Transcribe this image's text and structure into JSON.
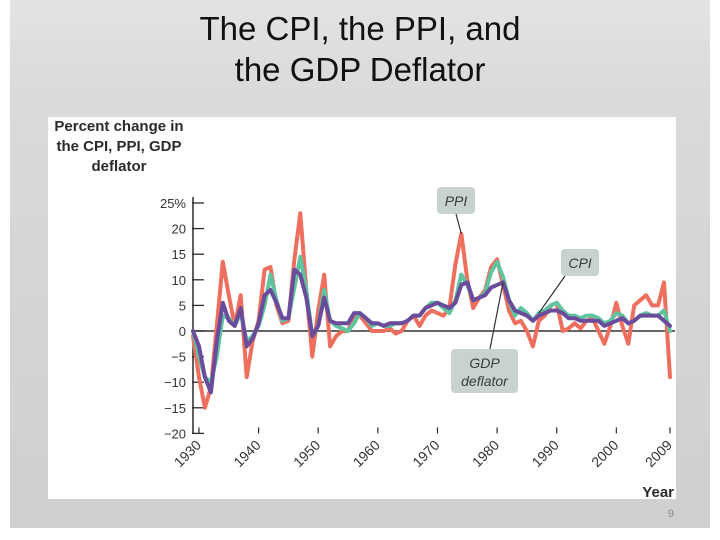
{
  "slide": {
    "title_line1": "The CPI, the PPI, and",
    "title_line2": "the GDP Deflator",
    "page_number": "9"
  },
  "chart_data": {
    "type": "line",
    "title": "",
    "ylabel_lines": [
      "Percent change in",
      "the CPI, PPI, GDP",
      "deflator"
    ],
    "xlabel": "Year",
    "ylim": [
      -20,
      25
    ],
    "xlim": [
      1929,
      2009
    ],
    "yticks": [
      25,
      20,
      15,
      10,
      5,
      0,
      -5,
      -10,
      -15,
      -20
    ],
    "ytick_labels": [
      "25%",
      "20",
      "15",
      "10",
      "5",
      "0",
      "−5",
      "−10",
      "−15",
      "−20"
    ],
    "xticks": [
      1930,
      1940,
      1950,
      1960,
      1970,
      1980,
      1990,
      2000,
      2009
    ],
    "xtick_labels": [
      "1930",
      "1940",
      "1950",
      "1960",
      "1970",
      "1980",
      "1990",
      "2000",
      "2009"
    ],
    "series": [
      {
        "name": "PPI",
        "color": "#ef6f5e",
        "points": [
          [
            1929,
            -1
          ],
          [
            1930,
            -9
          ],
          [
            1931,
            -15
          ],
          [
            1932,
            -11
          ],
          [
            1933,
            1
          ],
          [
            1934,
            13.5
          ],
          [
            1935,
            7
          ],
          [
            1936,
            1
          ],
          [
            1937,
            7
          ],
          [
            1938,
            -9
          ],
          [
            1939,
            -2
          ],
          [
            1940,
            2
          ],
          [
            1941,
            12
          ],
          [
            1942,
            12.5
          ],
          [
            1943,
            5
          ],
          [
            1944,
            1.5
          ],
          [
            1945,
            2
          ],
          [
            1946,
            14
          ],
          [
            1947,
            23
          ],
          [
            1948,
            8
          ],
          [
            1949,
            -5
          ],
          [
            1950,
            4
          ],
          [
            1951,
            11
          ],
          [
            1952,
            -3
          ],
          [
            1953,
            -1
          ],
          [
            1954,
            0
          ],
          [
            1955,
            0
          ],
          [
            1956,
            3
          ],
          [
            1957,
            3
          ],
          [
            1958,
            1.5
          ],
          [
            1959,
            0
          ],
          [
            1960,
            0
          ],
          [
            1961,
            0
          ],
          [
            1962,
            0.5
          ],
          [
            1963,
            -0.5
          ],
          [
            1964,
            0
          ],
          [
            1965,
            2
          ],
          [
            1966,
            3
          ],
          [
            1967,
            1
          ],
          [
            1968,
            3
          ],
          [
            1969,
            4
          ],
          [
            1970,
            3.5
          ],
          [
            1971,
            3
          ],
          [
            1972,
            4.5
          ],
          [
            1973,
            13
          ],
          [
            1974,
            19
          ],
          [
            1975,
            10
          ],
          [
            1976,
            4.5
          ],
          [
            1977,
            6.5
          ],
          [
            1978,
            8
          ],
          [
            1979,
            12.5
          ],
          [
            1980,
            14
          ],
          [
            1981,
            9
          ],
          [
            1982,
            4
          ],
          [
            1983,
            1.5
          ],
          [
            1984,
            2
          ],
          [
            1985,
            0
          ],
          [
            1986,
            -3
          ],
          [
            1987,
            2
          ],
          [
            1988,
            3
          ],
          [
            1989,
            5
          ],
          [
            1990,
            5.5
          ],
          [
            1991,
            0
          ],
          [
            1992,
            0.5
          ],
          [
            1993,
            1.5
          ],
          [
            1994,
            0.5
          ],
          [
            1995,
            2
          ],
          [
            1996,
            2.5
          ],
          [
            1997,
            0
          ],
          [
            1998,
            -2.5
          ],
          [
            1999,
            1
          ],
          [
            2000,
            5.5
          ],
          [
            2001,
            1
          ],
          [
            2002,
            -2.5
          ],
          [
            2003,
            5
          ],
          [
            2004,
            6
          ],
          [
            2005,
            7
          ],
          [
            2006,
            5
          ],
          [
            2007,
            5
          ],
          [
            2008,
            9.5
          ],
          [
            2009,
            -9
          ]
        ]
      },
      {
        "name": "CPI",
        "color": "#5ec4a0",
        "points": [
          [
            1929,
            0
          ],
          [
            1930,
            -5
          ],
          [
            1931,
            -9
          ],
          [
            1932,
            -10
          ],
          [
            1933,
            -5
          ],
          [
            1934,
            3
          ],
          [
            1935,
            2.5
          ],
          [
            1936,
            1
          ],
          [
            1937,
            3.5
          ],
          [
            1938,
            -2
          ],
          [
            1939,
            -1
          ],
          [
            1940,
            1
          ],
          [
            1941,
            5
          ],
          [
            1942,
            11
          ],
          [
            1943,
            6
          ],
          [
            1944,
            2
          ],
          [
            1945,
            2.5
          ],
          [
            1946,
            8.5
          ],
          [
            1947,
            14.5
          ],
          [
            1948,
            8
          ],
          [
            1949,
            -1
          ],
          [
            1950,
            1
          ],
          [
            1951,
            8
          ],
          [
            1952,
            2
          ],
          [
            1953,
            1
          ],
          [
            1954,
            0.5
          ],
          [
            1955,
            0
          ],
          [
            1956,
            1.5
          ],
          [
            1957,
            3.5
          ],
          [
            1958,
            2.5
          ],
          [
            1959,
            1
          ],
          [
            1960,
            1.5
          ],
          [
            1961,
            1
          ],
          [
            1962,
            1
          ],
          [
            1963,
            1.5
          ],
          [
            1964,
            1.5
          ],
          [
            1965,
            2
          ],
          [
            1966,
            3
          ],
          [
            1967,
            3
          ],
          [
            1968,
            4.5
          ],
          [
            1969,
            5.5
          ],
          [
            1970,
            5.5
          ],
          [
            1971,
            4.5
          ],
          [
            1972,
            3.5
          ],
          [
            1973,
            6
          ],
          [
            1974,
            11
          ],
          [
            1975,
            9
          ],
          [
            1976,
            6
          ],
          [
            1977,
            6.5
          ],
          [
            1978,
            7.5
          ],
          [
            1979,
            11.5
          ],
          [
            1980,
            13.5
          ],
          [
            1981,
            10.5
          ],
          [
            1982,
            6
          ],
          [
            1983,
            3
          ],
          [
            1984,
            4.5
          ],
          [
            1985,
            3.5
          ],
          [
            1986,
            2
          ],
          [
            1987,
            3.5
          ],
          [
            1988,
            4
          ],
          [
            1989,
            5
          ],
          [
            1990,
            5.5
          ],
          [
            1991,
            4
          ],
          [
            1992,
            3
          ],
          [
            1993,
            3
          ],
          [
            1994,
            2.5
          ],
          [
            1995,
            3
          ],
          [
            1996,
            3
          ],
          [
            1997,
            2.5
          ],
          [
            1998,
            1.5
          ],
          [
            1999,
            2
          ],
          [
            2000,
            3.5
          ],
          [
            2001,
            3
          ],
          [
            2002,
            1.5
          ],
          [
            2003,
            2
          ],
          [
            2004,
            3
          ],
          [
            2005,
            3.5
          ],
          [
            2006,
            3
          ],
          [
            2007,
            3
          ],
          [
            2008,
            4
          ],
          [
            2009,
            0
          ]
        ]
      },
      {
        "name": "GDP deflator",
        "color": "#6a4b9c",
        "points": [
          [
            1929,
            0
          ],
          [
            1930,
            -3
          ],
          [
            1931,
            -9
          ],
          [
            1932,
            -12
          ],
          [
            1933,
            -2
          ],
          [
            1934,
            5.5
          ],
          [
            1935,
            2
          ],
          [
            1936,
            1
          ],
          [
            1937,
            4.5
          ],
          [
            1938,
            -3
          ],
          [
            1939,
            -1.5
          ],
          [
            1940,
            1.5
          ],
          [
            1941,
            7
          ],
          [
            1942,
            8
          ],
          [
            1943,
            5.5
          ],
          [
            1944,
            2.5
          ],
          [
            1945,
            2.5
          ],
          [
            1946,
            12
          ],
          [
            1947,
            11
          ],
          [
            1948,
            6.5
          ],
          [
            1949,
            -1
          ],
          [
            1950,
            1
          ],
          [
            1951,
            6.5
          ],
          [
            1952,
            2
          ],
          [
            1953,
            1.5
          ],
          [
            1954,
            1.5
          ],
          [
            1955,
            1.5
          ],
          [
            1956,
            3.5
          ],
          [
            1957,
            3.5
          ],
          [
            1958,
            2.5
          ],
          [
            1959,
            1.5
          ],
          [
            1960,
            1.5
          ],
          [
            1961,
            1
          ],
          [
            1962,
            1.5
          ],
          [
            1963,
            1.5
          ],
          [
            1964,
            1.5
          ],
          [
            1965,
            2
          ],
          [
            1966,
            3
          ],
          [
            1967,
            3
          ],
          [
            1968,
            4.5
          ],
          [
            1969,
            5
          ],
          [
            1970,
            5.5
          ],
          [
            1971,
            5
          ],
          [
            1972,
            4.5
          ],
          [
            1973,
            5.5
          ],
          [
            1974,
            9
          ],
          [
            1975,
            9.5
          ],
          [
            1976,
            6
          ],
          [
            1977,
            6.5
          ],
          [
            1978,
            7
          ],
          [
            1979,
            8.5
          ],
          [
            1980,
            9
          ],
          [
            1981,
            9.5
          ],
          [
            1982,
            6
          ],
          [
            1983,
            4
          ],
          [
            1984,
            3.5
          ],
          [
            1985,
            3
          ],
          [
            1986,
            2
          ],
          [
            1987,
            3
          ],
          [
            1988,
            3.5
          ],
          [
            1989,
            4
          ],
          [
            1990,
            4
          ],
          [
            1991,
            3.5
          ],
          [
            1992,
            2.5
          ],
          [
            1993,
            2.5
          ],
          [
            1994,
            2
          ],
          [
            1995,
            2
          ],
          [
            1996,
            2
          ],
          [
            1997,
            2
          ],
          [
            1998,
            1
          ],
          [
            1999,
            1.5
          ],
          [
            2000,
            2
          ],
          [
            2001,
            2.5
          ],
          [
            2002,
            1.5
          ],
          [
            2003,
            2
          ],
          [
            2004,
            3
          ],
          [
            2005,
            3
          ],
          [
            2006,
            3
          ],
          [
            2007,
            3
          ],
          [
            2008,
            2
          ],
          [
            2009,
            1
          ]
        ]
      }
    ],
    "annotations": [
      {
        "text_lines": [
          "PPI"
        ],
        "series": "PPI",
        "at_year": 1974
      },
      {
        "text_lines": [
          "CPI"
        ],
        "series": "CPI",
        "at_year": 1987
      },
      {
        "text_lines": [
          "GDP",
          "deflator"
        ],
        "series": "GDP deflator",
        "at_year": 1981
      }
    ],
    "colors": {
      "axis": "#2b2b2b",
      "zero_line": "#333333",
      "callout_bg": "#c8d3cf",
      "callout_text": "#3a3a3a"
    }
  }
}
